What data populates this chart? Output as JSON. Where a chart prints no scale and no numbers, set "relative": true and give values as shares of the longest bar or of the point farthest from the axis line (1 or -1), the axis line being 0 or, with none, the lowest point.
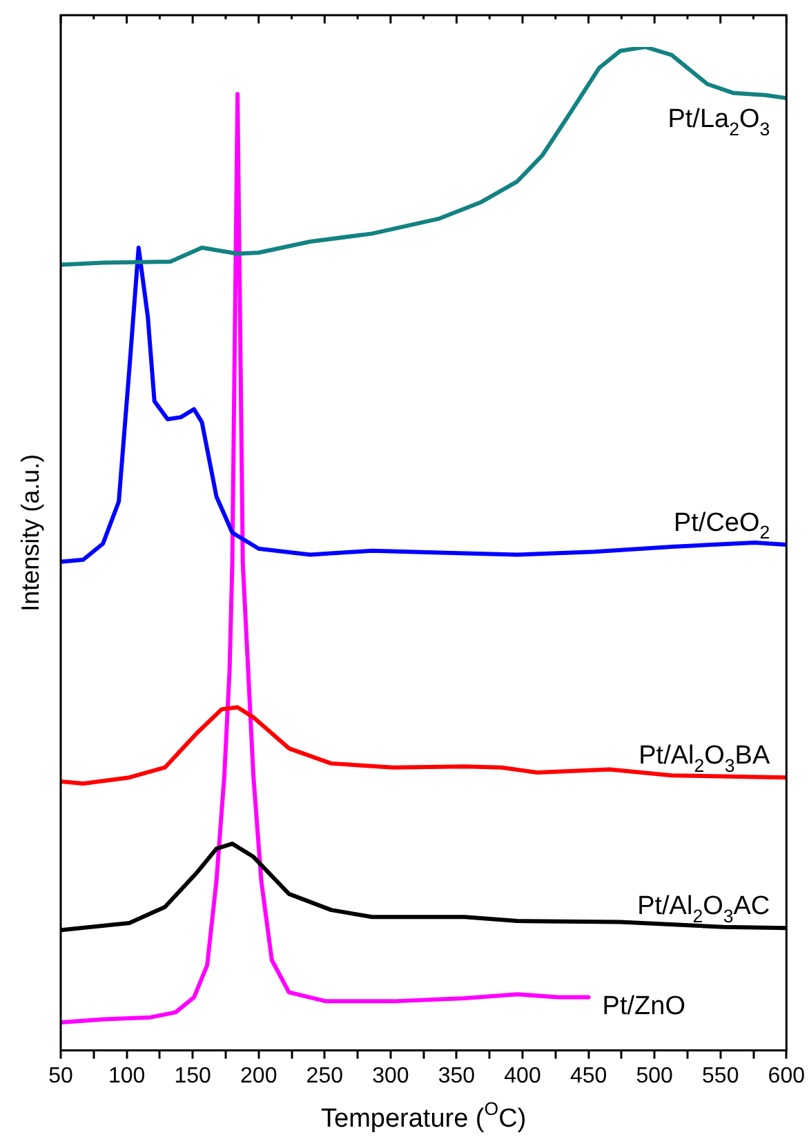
{
  "chart_data": {
    "type": "line",
    "relative": true,
    "xlabel": "Temperature ($^{O}$C)",
    "ylabel": "Intensity (a.u.)",
    "xlim": [
      50,
      600
    ],
    "xticks": [
      50,
      {
        "value": 75,
        "label": null
      },
      100,
      {
        "value": 125,
        "label": null
      },
      150,
      {
        "value": 175,
        "label": null
      },
      200,
      {
        "value": 225,
        "label": null
      },
      250,
      {
        "value": 275,
        "label": null
      },
      300,
      {
        "value": 325,
        "label": null
      },
      350,
      {
        "value": 375,
        "label": null
      },
      400,
      {
        "value": 425,
        "label": null
      },
      450,
      {
        "value": 475,
        "label": null
      },
      500,
      {
        "value": 525,
        "label": null
      },
      550,
      {
        "value": 575,
        "label": null
      },
      600
    ],
    "grid": false,
    "legend": false,
    "marker": "none",
    "line_style": "solid",
    "series": [
      {
        "name": "Pt/La$_{2}$O$_{3}$",
        "color": "#138282",
        "x": [
          50,
          82,
          133,
          157,
          184,
          200,
          239,
          286,
          337,
          368,
          396,
          415,
          435,
          458,
          474,
          493,
          513,
          540,
          560,
          584,
          600
        ],
        "values": [
          0.783,
          0.785,
          0.786,
          0.8,
          0.794,
          0.795,
          0.806,
          0.814,
          0.829,
          0.845,
          0.866,
          0.892,
          0.932,
          0.979,
          0.996,
          1.0,
          0.992,
          0.963,
          0.954,
          0.952,
          0.949
        ]
      },
      {
        "name": "Pt/CeO$_{2}$",
        "color": "#0000ff",
        "x": [
          50,
          67,
          82,
          94,
          102,
          109,
          116,
          121,
          131,
          141,
          151,
          157,
          168,
          180,
          200,
          239,
          286,
          337,
          396,
          454,
          513,
          576,
          600
        ],
        "values": [
          0.487,
          0.489,
          0.505,
          0.547,
          0.679,
          0.8,
          0.731,
          0.647,
          0.629,
          0.631,
          0.639,
          0.626,
          0.552,
          0.516,
          0.5,
          0.494,
          0.498,
          0.496,
          0.494,
          0.497,
          0.502,
          0.506,
          0.504
        ]
      },
      {
        "name": "Pt/Al$_{2}$O$_{3}$BA",
        "color": "#ff0000",
        "x": [
          50,
          67,
          102,
          129,
          153,
          172,
          184,
          196,
          223,
          255,
          302,
          356,
          384,
          411,
          466,
          513,
          600
        ],
        "values": [
          0.268,
          0.266,
          0.272,
          0.282,
          0.316,
          0.34,
          0.342,
          0.332,
          0.301,
          0.286,
          0.282,
          0.283,
          0.282,
          0.277,
          0.28,
          0.274,
          0.272
        ]
      },
      {
        "name": "Pt/Al$_{2}$O$_{3}$AC",
        "color": "#000000",
        "x": [
          50,
          102,
          129,
          153,
          168,
          180,
          196,
          223,
          255,
          286,
          356,
          396,
          474,
          552,
          600
        ],
        "values": [
          0.12,
          0.127,
          0.143,
          0.177,
          0.201,
          0.206,
          0.193,
          0.156,
          0.14,
          0.133,
          0.133,
          0.129,
          0.128,
          0.123,
          0.122
        ]
      },
      {
        "name": "Pt/ZnO",
        "color": "#ff00ff",
        "x": [
          50,
          82,
          118,
          137,
          151,
          161,
          168,
          174,
          178,
          180,
          184,
          188,
          192,
          196,
          202,
          210,
          223,
          251,
          302,
          356,
          396,
          427,
          450
        ],
        "values": [
          0.028,
          0.031,
          0.033,
          0.038,
          0.053,
          0.085,
          0.169,
          0.274,
          0.38,
          0.485,
          0.953,
          0.485,
          0.38,
          0.274,
          0.169,
          0.09,
          0.058,
          0.049,
          0.049,
          0.052,
          0.056,
          0.053,
          0.053
        ]
      }
    ]
  }
}
